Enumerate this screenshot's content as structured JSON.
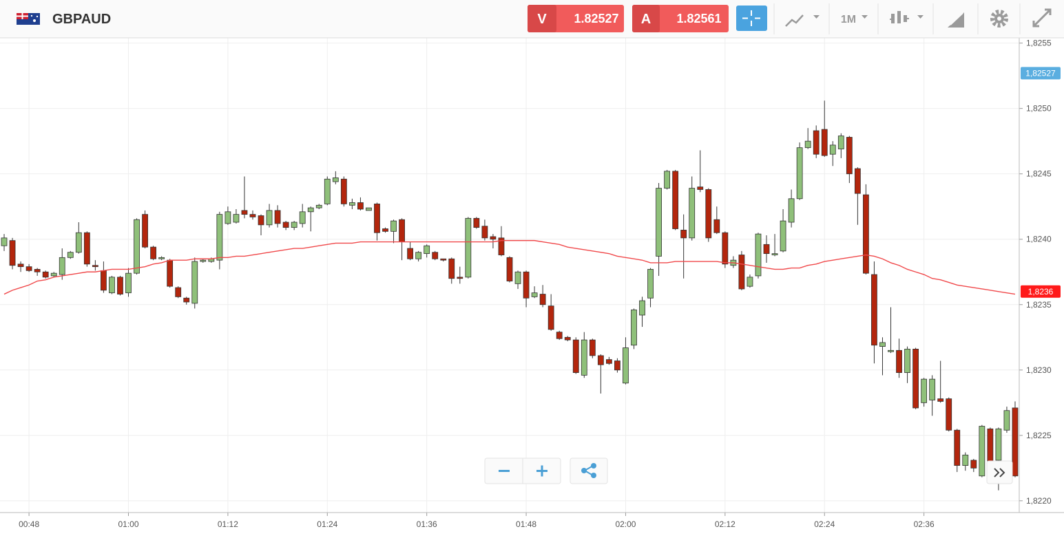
{
  "header": {
    "symbol": "GBPAUD",
    "sell_label": "V",
    "sell_price": "1.82527",
    "buy_label": "A",
    "buy_price": "1.82561",
    "timeframe": "1M"
  },
  "chart_data": {
    "type": "candlestick",
    "grid": true,
    "up_color": "#8fc07a",
    "down_color": "#b3260d",
    "ma_color": "#f0484a",
    "categories": [
      null,
      null,
      null,
      "00:48",
      null,
      null,
      null,
      null,
      null,
      null,
      null,
      null,
      null,
      null,
      null,
      "01:00",
      null,
      null,
      null,
      null,
      null,
      null,
      null,
      null,
      null,
      null,
      null,
      "01:12",
      null,
      null,
      null,
      null,
      null,
      null,
      null,
      null,
      null,
      null,
      null,
      "01:24",
      null,
      null,
      null,
      null,
      null,
      null,
      null,
      null,
      null,
      null,
      null,
      "01:36",
      null,
      null,
      null,
      null,
      null,
      null,
      null,
      null,
      null,
      null,
      null,
      "01:48",
      null,
      null,
      null,
      null,
      null,
      null,
      null,
      null,
      null,
      null,
      null,
      "02:00",
      null,
      null,
      null,
      null,
      null,
      null,
      null,
      null,
      null,
      null,
      null,
      "02:12",
      null,
      null,
      null,
      null,
      null,
      null,
      null,
      null,
      null,
      null,
      null,
      "02:24",
      null,
      null,
      null,
      null,
      null,
      null,
      null,
      null,
      null,
      null,
      null,
      "02:36",
      null,
      null,
      null,
      null,
      null,
      null,
      null,
      null,
      null,
      null,
      null
    ],
    "open": [
      1.82395,
      1.82399,
      1.82381,
      1.82379,
      1.82377,
      1.82375,
      1.82372,
      1.82373,
      1.82386,
      1.8239,
      1.82405,
      1.8238,
      1.82376,
      1.82359,
      1.82371,
      1.82359,
      1.82374,
      1.82419,
      1.82394,
      1.82385,
      1.82384,
      1.82363,
      1.82355,
      1.82351,
      1.82383,
      1.82383,
      1.82384,
      1.82412,
      1.82413,
      1.82422,
      1.82419,
      1.82418,
      1.82411,
      1.82422,
      1.82413,
      1.82409,
      1.82412,
      1.82421,
      1.82424,
      1.82427,
      1.82444,
      1.82446,
      1.82426,
      1.82428,
      1.82422,
      1.82427,
      1.82408,
      1.82406,
      1.82415,
      1.82393,
      1.82385,
      1.82389,
      1.8239,
      1.82385,
      1.82385,
      1.82371,
      1.82371,
      1.82416,
      1.8241,
      1.82402,
      1.82401,
      1.82386,
      1.82366,
      1.82375,
      1.82356,
      1.82358,
      1.82349,
      1.82329,
      1.82325,
      1.82323,
      1.82296,
      1.82323,
      1.82311,
      1.82308,
      1.82307,
      1.8229,
      1.82319,
      1.82342,
      1.82355,
      1.82387,
      1.82439,
      1.82452,
      1.82407,
      1.82401,
      1.8244,
      1.82438,
      1.82415,
      1.82405,
      1.8238,
      1.82388,
      1.82364,
      1.82372,
      1.82396,
      1.82388,
      1.82391,
      1.82413,
      1.82431,
      1.8247,
      1.82483,
      1.82484,
      1.82465,
      1.82469,
      1.82478,
      1.82454,
      1.82434,
      1.82373,
      1.82318,
      1.82314,
      1.82315,
      1.82298,
      1.82316,
      1.82275,
      1.82277,
      1.82278,
      1.82278,
      1.82254,
      1.82227,
      1.82231,
      1.82219,
      1.82255,
      1.82231,
      1.82254,
      1.82271
    ],
    "high": [
      1.82404,
      1.82401,
      1.82383,
      1.82381,
      1.82378,
      1.82376,
      1.82375,
      1.82393,
      1.82391,
      1.82413,
      1.82406,
      1.82384,
      1.82383,
      1.82372,
      1.82372,
      1.82378,
      1.82416,
      1.82422,
      1.82395,
      1.82387,
      1.82385,
      1.82364,
      1.82356,
      1.82386,
      1.82385,
      1.82386,
      1.82421,
      1.82425,
      1.82423,
      1.82448,
      1.82422,
      1.82419,
      1.82427,
      1.82426,
      1.82414,
      1.82414,
      1.82427,
      1.82425,
      1.82427,
      1.82448,
      1.82452,
      1.82448,
      1.82431,
      1.82432,
      1.82424,
      1.82428,
      1.82409,
      1.82415,
      1.82416,
      1.82398,
      1.82391,
      1.82396,
      1.82391,
      1.82385,
      1.82386,
      1.82379,
      1.82417,
      1.82417,
      1.82415,
      1.82404,
      1.8241,
      1.82387,
      1.82376,
      1.82376,
      1.82364,
      1.82365,
      1.82358,
      1.8233,
      1.82326,
      1.82325,
      1.82329,
      1.82324,
      1.82312,
      1.8231,
      1.82309,
      1.82325,
      1.82347,
      1.82356,
      1.82378,
      1.82443,
      1.82453,
      1.82453,
      1.82419,
      1.82448,
      1.82468,
      1.82439,
      1.82425,
      1.82406,
      1.82387,
      1.82391,
      1.82373,
      1.82405,
      1.82403,
      1.82404,
      1.82423,
      1.82438,
      1.82474,
      1.82485,
      1.82487,
      1.82506,
      1.82475,
      1.82481,
      1.82479,
      1.82455,
      1.82442,
      1.82383,
      1.82325,
      1.82348,
      1.82324,
      1.82318,
      1.82317,
      1.82294,
      1.82296,
      1.82307,
      1.82279,
      1.82255,
      1.82237,
      1.82232,
      1.82258,
      1.82256,
      1.82256,
      1.82272,
      1.82276
    ],
    "low": [
      1.82391,
      1.82377,
      1.82375,
      1.82375,
      1.82372,
      1.8237,
      1.82371,
      1.82369,
      1.82385,
      1.82389,
      1.82379,
      1.82376,
      1.82359,
      1.82358,
      1.82357,
      1.82356,
      1.82373,
      1.82393,
      1.82384,
      1.82384,
      1.82363,
      1.82355,
      1.8235,
      1.82347,
      1.82382,
      1.82382,
      1.82377,
      1.82411,
      1.82412,
      1.82416,
      1.82415,
      1.82403,
      1.82409,
      1.82409,
      1.82407,
      1.82407,
      1.82409,
      1.82406,
      1.82423,
      1.82426,
      1.82442,
      1.82425,
      1.82423,
      1.82422,
      1.82422,
      1.82399,
      1.82405,
      1.82397,
      1.82384,
      1.82384,
      1.82383,
      1.82386,
      1.82384,
      1.82383,
      1.82366,
      1.82366,
      1.8237,
      1.82408,
      1.82399,
      1.82393,
      1.82387,
      1.82367,
      1.82362,
      1.82348,
      1.82355,
      1.82348,
      1.8233,
      1.82323,
      1.82322,
      1.82297,
      1.82294,
      1.82309,
      1.82282,
      1.82304,
      1.82298,
      1.82289,
      1.82316,
      1.82333,
      1.82348,
      1.82372,
      1.82438,
      1.82407,
      1.8237,
      1.82399,
      1.82436,
      1.82398,
      1.82404,
      1.82378,
      1.82378,
      1.82361,
      1.82363,
      1.8237,
      1.82382,
      1.82387,
      1.8239,
      1.82409,
      1.8243,
      1.82469,
      1.82462,
      1.82463,
      1.82456,
      1.82462,
      1.82443,
      1.82411,
      1.82373,
      1.82305,
      1.82296,
      1.82313,
      1.82294,
      1.8229,
      1.8227,
      1.82272,
      1.82265,
      1.82275,
      1.82253,
      1.82222,
      1.82223,
      1.82222,
      1.82218,
      1.82228,
      1.82208,
      1.82252,
      1.82218
    ],
    "close": [
      1.82401,
      1.8238,
      1.82379,
      1.82376,
      1.82375,
      1.82371,
      1.82374,
      1.82386,
      1.8239,
      1.82405,
      1.82381,
      1.82379,
      1.82361,
      1.82371,
      1.82358,
      1.82374,
      1.82415,
      1.82394,
      1.82385,
      1.82386,
      1.82364,
      1.82356,
      1.82352,
      1.82383,
      1.82384,
      1.82385,
      1.82419,
      1.82421,
      1.82419,
      1.82419,
      1.82417,
      1.82411,
      1.82422,
      1.82412,
      1.82409,
      1.82413,
      1.82421,
      1.82424,
      1.82426,
      1.82446,
      1.82447,
      1.82427,
      1.82428,
      1.82423,
      1.82424,
      1.82405,
      1.82406,
      1.82414,
      1.82398,
      1.82385,
      1.8239,
      1.82395,
      1.82385,
      1.82384,
      1.8237,
      1.8237,
      1.82416,
      1.82409,
      1.82401,
      1.824,
      1.82388,
      1.82368,
      1.82375,
      1.82355,
      1.82359,
      1.8235,
      1.82331,
      1.82324,
      1.82323,
      1.82298,
      1.82323,
      1.82311,
      1.82304,
      1.82305,
      1.823,
      1.82317,
      1.82346,
      1.82353,
      1.82377,
      1.82439,
      1.82452,
      1.82408,
      1.82401,
      1.82439,
      1.82438,
      1.82401,
      1.82405,
      1.82381,
      1.82384,
      1.82362,
      1.82371,
      1.82404,
      1.82389,
      1.82389,
      1.82414,
      1.82431,
      1.8247,
      1.82475,
      1.82465,
      1.82464,
      1.82472,
      1.82479,
      1.8245,
      1.82435,
      1.82374,
      1.82319,
      1.82321,
      1.82315,
      1.82298,
      1.82316,
      1.82271,
      1.82293,
      1.82293,
      1.82276,
      1.82254,
      1.82227,
      1.82235,
      1.82225,
      1.82257,
      1.82229,
      1.82255,
      1.82269,
      1.82219
    ],
    "ma": [
      1.82358,
      1.82361,
      1.82363,
      1.82365,
      1.82368,
      1.82369,
      1.82371,
      1.82372,
      1.82373,
      1.82374,
      1.82375,
      1.82375,
      1.82376,
      1.82377,
      1.82377,
      1.82377,
      1.82378,
      1.82379,
      1.82381,
      1.82382,
      1.82384,
      1.82384,
      1.82384,
      1.82385,
      1.82385,
      1.82385,
      1.82386,
      1.82386,
      1.82387,
      1.82387,
      1.82388,
      1.82389,
      1.8239,
      1.82391,
      1.82392,
      1.82393,
      1.82393,
      1.82394,
      1.82395,
      1.82396,
      1.82397,
      1.82397,
      1.82397,
      1.82398,
      1.82398,
      1.82398,
      1.82398,
      1.82398,
      1.82398,
      1.82398,
      1.82398,
      1.82398,
      1.82398,
      1.82398,
      1.82398,
      1.82398,
      1.82398,
      1.82398,
      1.82398,
      1.82398,
      1.82399,
      1.82399,
      1.82399,
      1.82399,
      1.82399,
      1.82398,
      1.82397,
      1.82396,
      1.82394,
      1.82393,
      1.82392,
      1.82391,
      1.8239,
      1.82389,
      1.82387,
      1.82386,
      1.82385,
      1.82384,
      1.82382,
      1.82382,
      1.82382,
      1.82383,
      1.82383,
      1.82383,
      1.82383,
      1.82383,
      1.82383,
      1.82382,
      1.82382,
      1.82381,
      1.8238,
      1.82379,
      1.82378,
      1.82377,
      1.82377,
      1.82378,
      1.82378,
      1.8238,
      1.82381,
      1.82383,
      1.82384,
      1.82385,
      1.82386,
      1.82387,
      1.82388,
      1.82387,
      1.82385,
      1.82382,
      1.8238,
      1.82377,
      1.82375,
      1.82373,
      1.8237,
      1.82369,
      1.82367,
      1.82365,
      1.82364,
      1.82363,
      1.82362,
      1.82361,
      1.8236,
      1.82359,
      1.82358
    ],
    "ylim": [
      1.82191,
      1.82554
    ],
    "yticks": [
      {
        "value": 1.8255,
        "label": "1,8255"
      },
      {
        "value": 1.825,
        "label": "1,8250"
      },
      {
        "value": 1.8245,
        "label": "1,8245"
      },
      {
        "value": 1.824,
        "label": "1,8240"
      },
      {
        "value": 1.8235,
        "label": "1,8235"
      },
      {
        "value": 1.823,
        "label": "1,8230"
      },
      {
        "value": 1.8225,
        "label": "1,8225"
      },
      {
        "value": 1.822,
        "label": "1,8220"
      }
    ],
    "price_labels": [
      {
        "value": 1.82527,
        "label": "1,82527",
        "color": "#5aaee0"
      },
      {
        "value": 1.8236,
        "label": "1,8236",
        "color": "#ff1a1a"
      }
    ]
  }
}
